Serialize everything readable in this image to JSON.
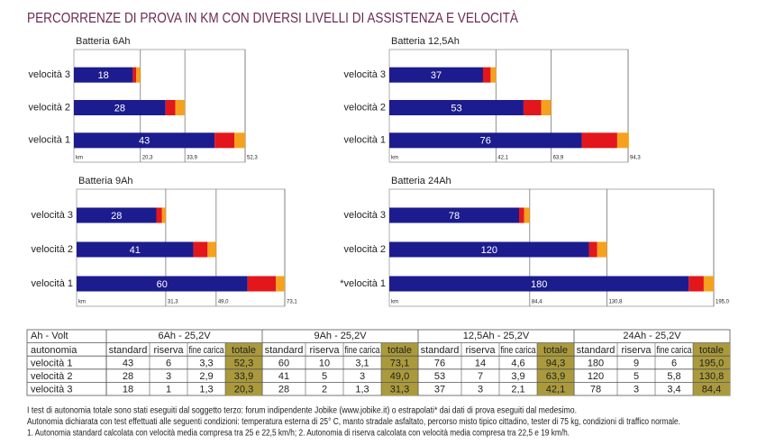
{
  "title": "PERCORRENZE DI PROVA IN KM CON DIVERSI LIVELLI DI ASSISTENZA E VELOCITÀ",
  "chart_data": [
    {
      "type": "bar",
      "orientation": "horizontal",
      "stacked": true,
      "title": "Batteria 6Ah",
      "categories": [
        "velocità 3",
        "velocità 2",
        "velocità 1"
      ],
      "series": [
        {
          "color": "#1c1c8f",
          "values": [
            18,
            28,
            43
          ]
        },
        {
          "color": "#e3161b",
          "values": [
            1,
            3,
            6
          ]
        },
        {
          "color": "#f6a11d",
          "values": [
            1.3,
            2.9,
            3.3
          ]
        }
      ],
      "xlim": [
        0,
        52.3
      ],
      "xticks": [
        {
          "value": 0,
          "label": "km"
        },
        {
          "value": 20.3,
          "label": "20,3"
        },
        {
          "value": 33.9,
          "label": "33,9"
        },
        {
          "value": 52.3,
          "label": "52,3"
        }
      ]
    },
    {
      "type": "bar",
      "orientation": "horizontal",
      "stacked": true,
      "title": "Batteria 12,5Ah",
      "categories": [
        "velocità 3",
        "velocità 2",
        "velocità 1"
      ],
      "series": [
        {
          "color": "#1c1c8f",
          "values": [
            37,
            53,
            76
          ]
        },
        {
          "color": "#e3161b",
          "values": [
            3,
            7,
            14
          ]
        },
        {
          "color": "#f6a11d",
          "values": [
            2.1,
            3.9,
            4.6
          ]
        }
      ],
      "xlim": [
        0,
        94.3
      ],
      "xticks": [
        {
          "value": 0,
          "label": "km"
        },
        {
          "value": 42.1,
          "label": "42,1"
        },
        {
          "value": 63.9,
          "label": "63,9"
        },
        {
          "value": 94.3,
          "label": "94,3"
        }
      ]
    },
    {
      "type": "bar",
      "orientation": "horizontal",
      "stacked": true,
      "title": "Batteria 9Ah",
      "categories": [
        "velocità 3",
        "velocità 2",
        "velocità 1"
      ],
      "series": [
        {
          "color": "#1c1c8f",
          "values": [
            28,
            41,
            60
          ]
        },
        {
          "color": "#e3161b",
          "values": [
            2,
            5,
            10
          ]
        },
        {
          "color": "#f6a11d",
          "values": [
            1.3,
            3,
            3.1
          ]
        }
      ],
      "xlim": [
        0,
        73.1
      ],
      "xticks": [
        {
          "value": 0,
          "label": "km"
        },
        {
          "value": 31.3,
          "label": "31,3"
        },
        {
          "value": 49,
          "label": "49,0"
        },
        {
          "value": 73.1,
          "label": "73,1"
        }
      ]
    },
    {
      "type": "bar",
      "orientation": "horizontal",
      "stacked": true,
      "title": "Batteria 24Ah",
      "categories": [
        "velocità 3",
        "velocità 2",
        "*velocità 1"
      ],
      "series": [
        {
          "color": "#1c1c8f",
          "values": [
            78,
            120,
            180
          ]
        },
        {
          "color": "#e3161b",
          "values": [
            3,
            5,
            9
          ]
        },
        {
          "color": "#f6a11d",
          "values": [
            3.4,
            5.8,
            6
          ]
        }
      ],
      "xlim": [
        0,
        195
      ],
      "xticks": [
        {
          "value": 0,
          "label": "km"
        },
        {
          "value": 84.4,
          "label": "84,4"
        },
        {
          "value": 130.8,
          "label": "130,8"
        },
        {
          "value": 195,
          "label": "195,0"
        }
      ]
    }
  ],
  "table": {
    "header": [
      "Ah - Volt",
      "6Ah - 25,2V",
      "9Ah - 25,2V",
      "12,5Ah - 25,2V",
      "24Ah - 25,2V"
    ],
    "subheader": [
      "autonomia",
      "standard",
      "riserva",
      "fine carica",
      "totale",
      "standard",
      "riserva",
      "fine carica",
      "totale",
      "standard",
      "riserva",
      "fine carica",
      "totale",
      "standard",
      "riserva",
      "fine carica",
      "totale"
    ],
    "rows": [
      [
        "velocità 1",
        "43",
        "6",
        "3,3",
        "52,3",
        "60",
        "10",
        "3,1",
        "73,1",
        "76",
        "14",
        "4,6",
        "94,3",
        "180",
        "9",
        "6",
        "195,0"
      ],
      [
        "velocità 2",
        "28",
        "3",
        "2,9",
        "33,9",
        "41",
        "5",
        "3",
        "49,0",
        "53",
        "7",
        "3,9",
        "63,9",
        "120",
        "5",
        "5,8",
        "130,8"
      ],
      [
        "velocità 3",
        "18",
        "1",
        "1,3",
        "20,3",
        "28",
        "2",
        "1,3",
        "31,3",
        "37",
        "3",
        "2,1",
        "42,1",
        "78",
        "3",
        "3,4",
        "84,4"
      ]
    ]
  },
  "notes": [
    "I test di autonomia totale sono stati eseguiti dal soggetto terzo: forum indipendente Jobike (www.jobike.it) o estrapolati* dai dati di prova eseguiti dal medesimo.",
    "Autonomia dichiarata con test effettuati alle seguenti condizioni: temperatura esterna di 25° C, manto stradale asfaltato,  percorso misto tipico cittadino, tester di 75 kg, condizioni di traffico normale.",
    "1. Autonomia standard calcolata con velocità media compresa tra 25 e 22,5 km/h; 2. Autonomia di riserva  calcolata con velocità media compresa tra 22,5 e 19 km/h."
  ]
}
